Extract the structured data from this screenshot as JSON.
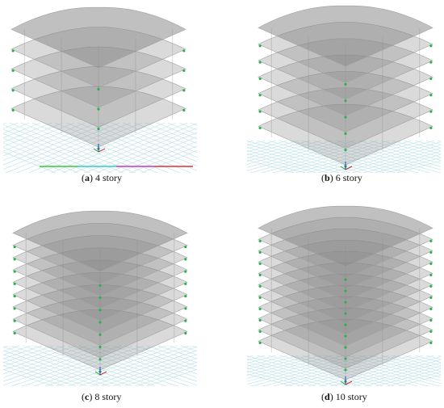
{
  "figure": {
    "panels": [
      {
        "id": "a",
        "letter": "a",
        "caption": "4 story",
        "stories": 4
      },
      {
        "id": "b",
        "letter": "b",
        "caption": "6 story",
        "stories": 6
      },
      {
        "id": "c",
        "letter": "c",
        "caption": "8 story",
        "stories": 8
      },
      {
        "id": "d",
        "letter": "d",
        "caption": "10 story",
        "stories": 10
      }
    ],
    "colors": {
      "slab": "#8c8c8c",
      "grid": "#b9e0ea",
      "support": "#2bb24c",
      "axis_x": "#d02020",
      "axis_y": "#20a020",
      "axis_z": "#2040d0",
      "baseline": [
        "#33cc33",
        "#33cccc",
        "#cc33cc",
        "#dd3333"
      ]
    }
  }
}
